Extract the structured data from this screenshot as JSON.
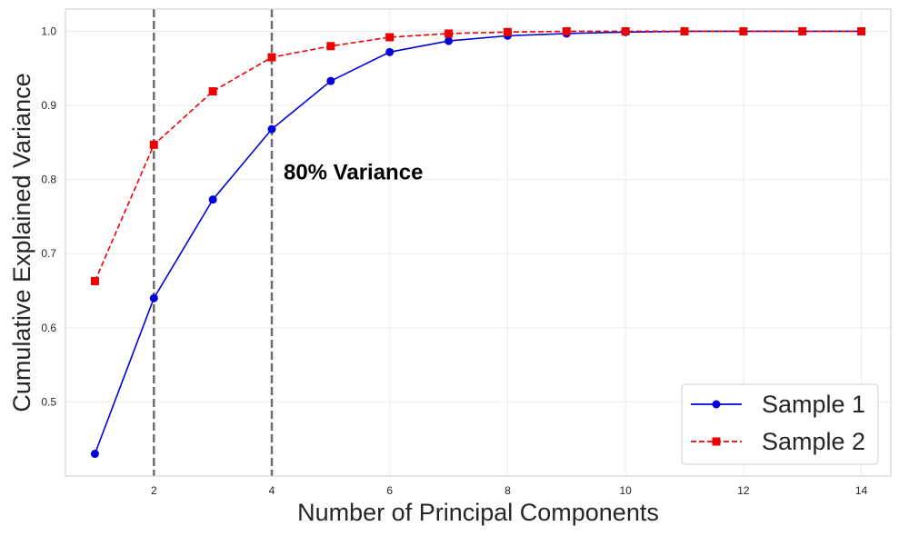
{
  "chart_data": {
    "type": "line",
    "title": "",
    "xlabel": "Number of Principal Components",
    "ylabel": "Cumulative Explained Variance",
    "xlim": [
      0.5,
      14.5
    ],
    "ylim": [
      0.4,
      1.03
    ],
    "xticks": [
      2,
      4,
      6,
      8,
      10,
      12,
      14
    ],
    "yticks": [
      0.5,
      0.6,
      0.7,
      0.8,
      0.9,
      1.0
    ],
    "xtick_labels": [
      "2",
      "4",
      "6",
      "8",
      "10",
      "12",
      "14"
    ],
    "ytick_labels": [
      "0.5",
      "0.6",
      "0.7",
      "0.8",
      "0.9",
      "1.0"
    ],
    "grid": true,
    "legend_position": "bottom-right",
    "x": [
      1,
      2,
      3,
      4,
      5,
      6,
      7,
      8,
      9,
      10,
      11,
      12,
      13,
      14
    ],
    "series": [
      {
        "name": "Sample 1",
        "color": "#0000dd",
        "line_style": "solid",
        "marker": "circle",
        "values": [
          0.43,
          0.64,
          0.773,
          0.868,
          0.933,
          0.972,
          0.987,
          0.994,
          0.997,
          0.999,
          1.0,
          1.0,
          1.0,
          1.0
        ]
      },
      {
        "name": "Sample 2",
        "color": "#ee0000",
        "line_style": "dashed",
        "marker": "square",
        "values": [
          0.663,
          0.847,
          0.919,
          0.965,
          0.98,
          0.992,
          0.997,
          0.999,
          1.0,
          1.0,
          1.0,
          1.0,
          1.0,
          1.0
        ]
      }
    ],
    "vlines": [
      {
        "x": 2,
        "color": "#6e6e6e",
        "style": "dashed"
      },
      {
        "x": 4,
        "color": "#6e6e6e",
        "style": "dashed"
      }
    ],
    "annotations": [
      {
        "text": "80% Variance",
        "x": 4.2,
        "y": 0.8
      }
    ]
  }
}
